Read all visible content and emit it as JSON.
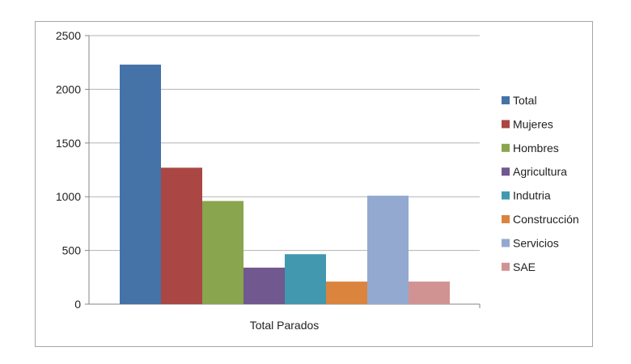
{
  "chart_data": {
    "type": "bar",
    "categories": [
      "Total Parados"
    ],
    "series": [
      {
        "name": "Total",
        "values": [
          2230
        ],
        "color": "#4572a7"
      },
      {
        "name": "Mujeres",
        "values": [
          1270
        ],
        "color": "#aa4643"
      },
      {
        "name": "Hombres",
        "values": [
          960
        ],
        "color": "#89a54e"
      },
      {
        "name": "Agricultura",
        "values": [
          340
        ],
        "color": "#71588f"
      },
      {
        "name": "Indutria",
        "values": [
          465
        ],
        "color": "#4198af"
      },
      {
        "name": "Construcción",
        "values": [
          210
        ],
        "color": "#db843d"
      },
      {
        "name": "Servicios",
        "values": [
          1010
        ],
        "color": "#93a9cf"
      },
      {
        "name": "SAE",
        "values": [
          210
        ],
        "color": "#d19392"
      }
    ],
    "yticks": [
      0,
      500,
      1000,
      1500,
      2000,
      2500
    ],
    "ylim": [
      0,
      2500
    ],
    "grid": true,
    "legend_position": "right"
  }
}
